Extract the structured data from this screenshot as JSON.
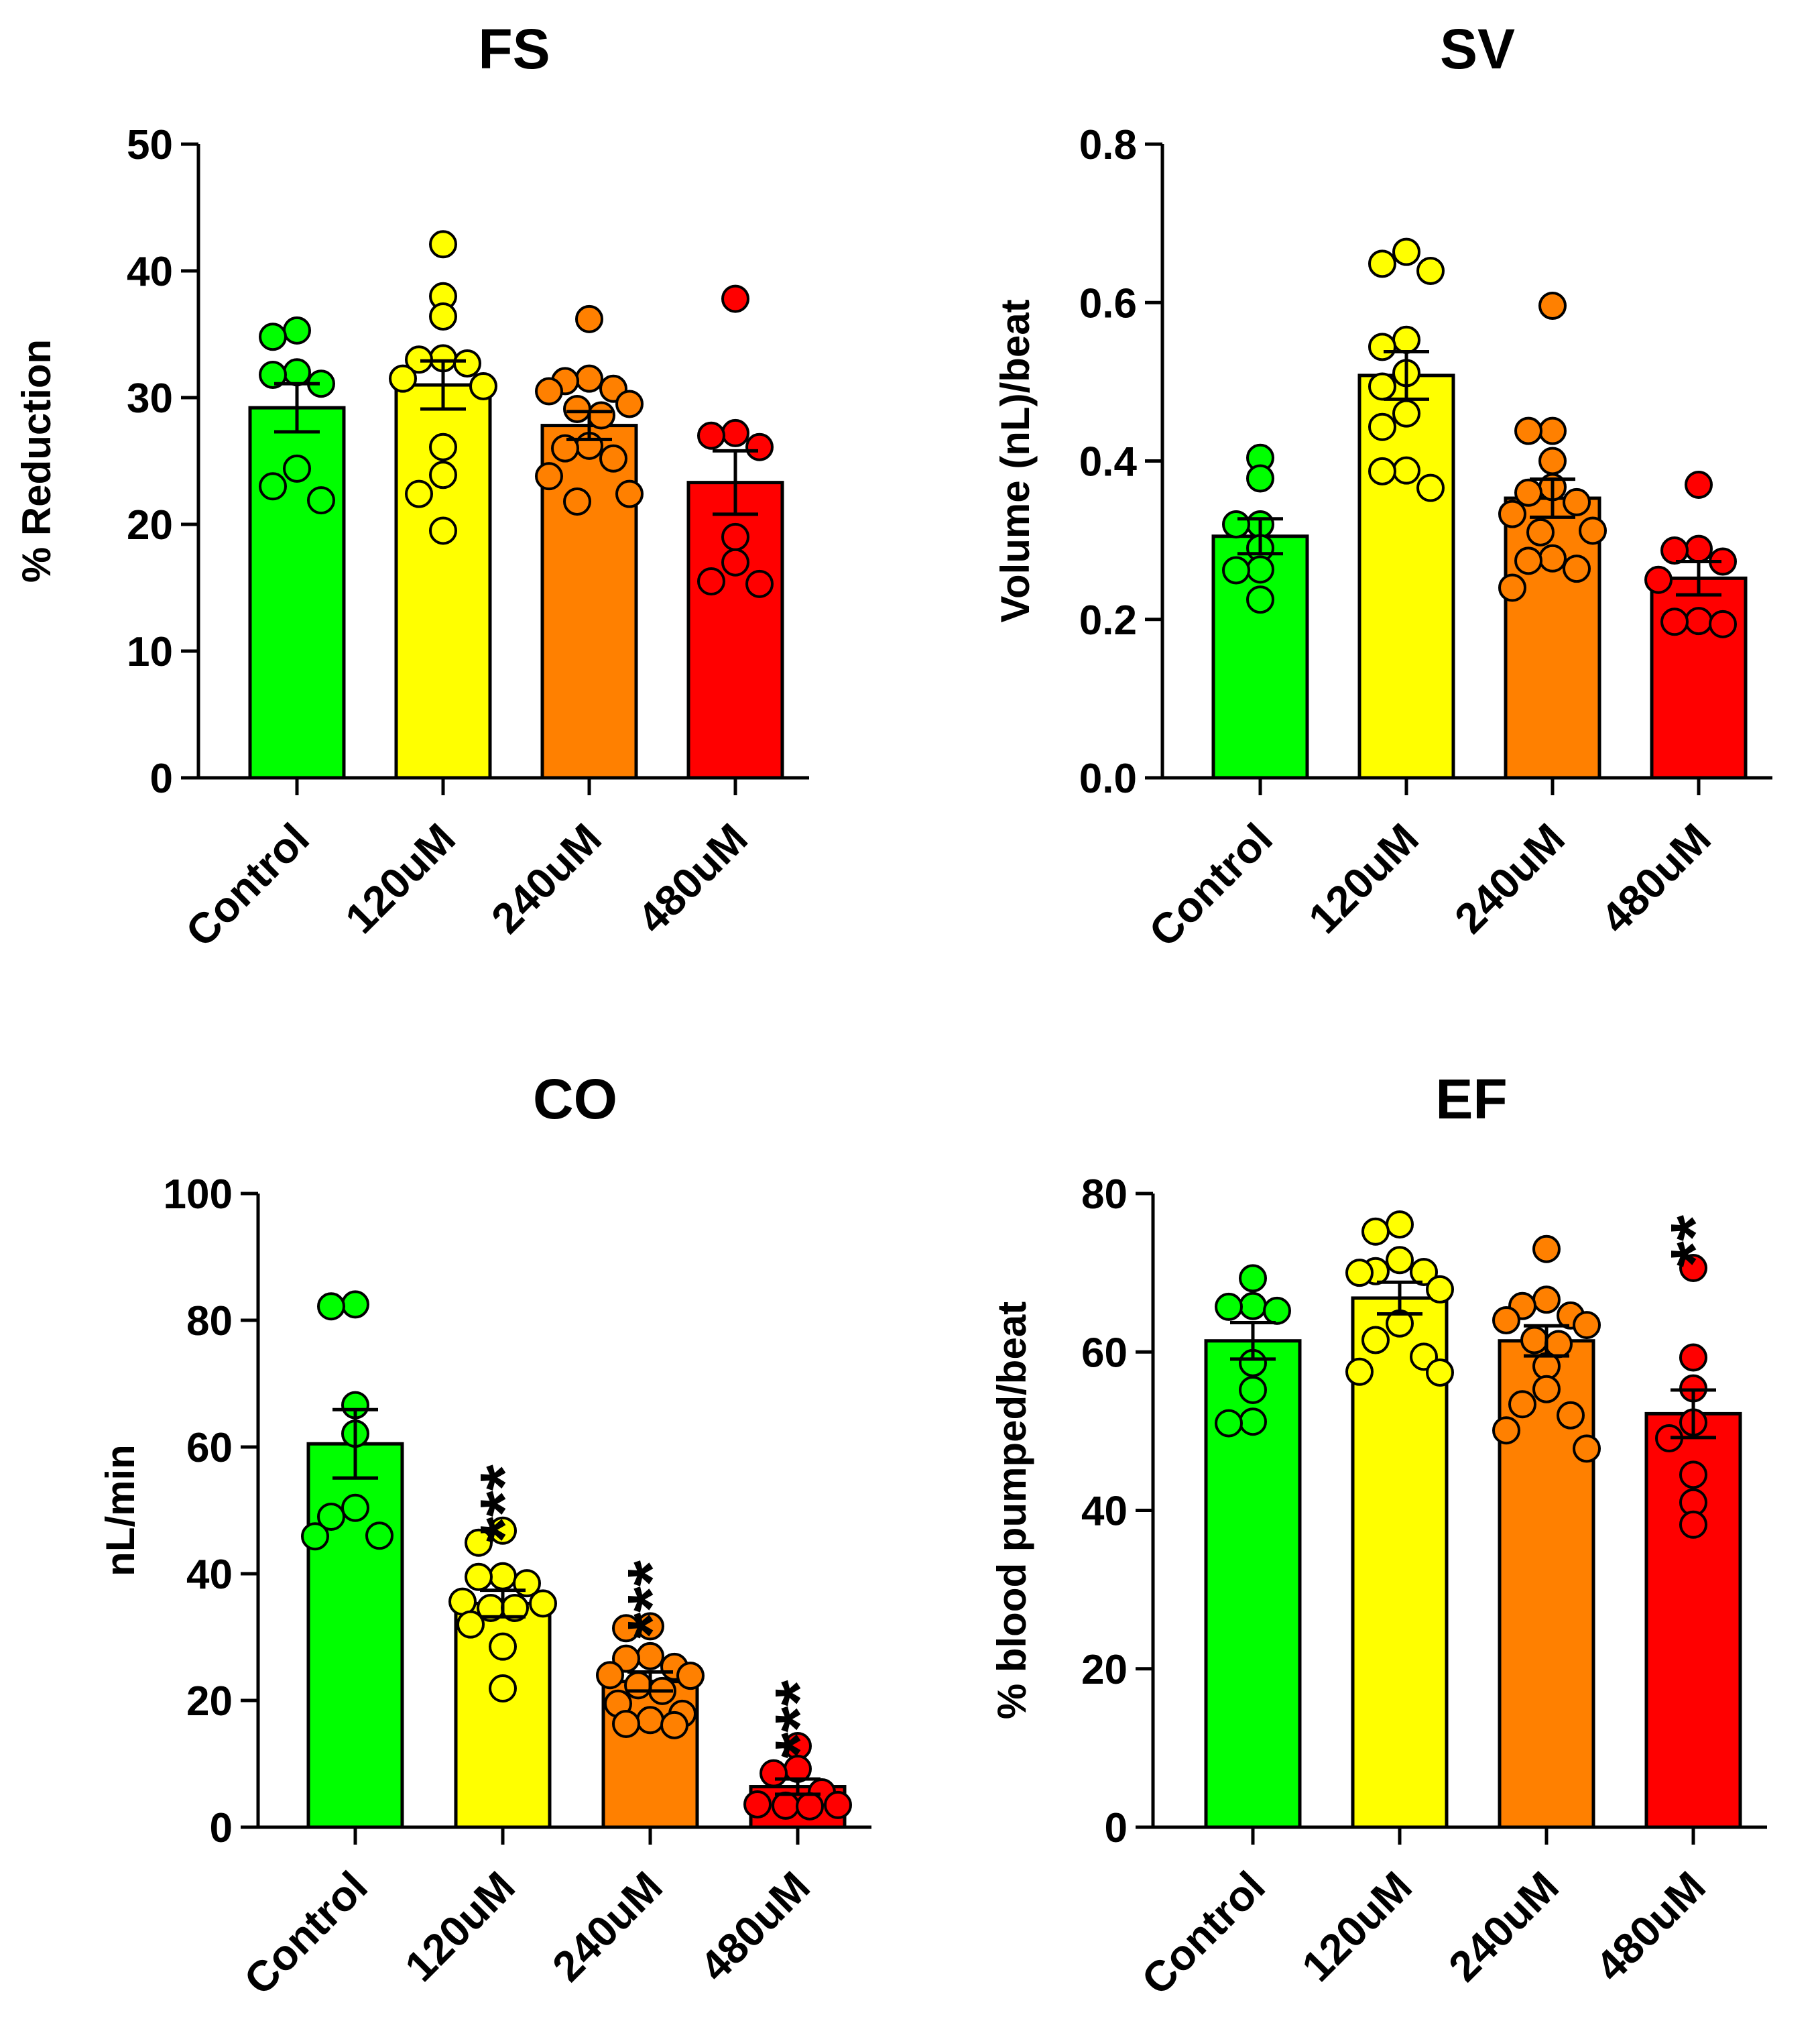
{
  "colors": {
    "Control": "#00ff00",
    "120uM": "#ffff00",
    "240uM": "#ff8000",
    "480uM": "#ff0000"
  },
  "chart_data": [
    {
      "type": "bar",
      "title": "FS",
      "ylabel": "% Reduction",
      "categories": [
        "Control",
        "120uM",
        "240uM",
        "480uM"
      ],
      "values": [
        29.2,
        31.0,
        27.8,
        23.3
      ],
      "sem": [
        1.9,
        1.9,
        1.1,
        2.5
      ],
      "ylim": [
        0,
        50
      ],
      "yticks": [
        0,
        10,
        20,
        30,
        40,
        50
      ],
      "ytick_labels": [
        "0",
        "10",
        "20",
        "30",
        "40",
        "50"
      ],
      "significance": [
        "",
        "",
        "",
        ""
      ],
      "points": [
        [
          34.8,
          35.3,
          32.0,
          31.1,
          31.8,
          21.9,
          24.4,
          23.0
        ],
        [
          42.1,
          36.4,
          38.0,
          32.7,
          33.0,
          33.1,
          31.5,
          30.9,
          26.1,
          23.9,
          22.4,
          19.5
        ],
        [
          36.2,
          31.3,
          30.5,
          30.7,
          31.5,
          29.1,
          28.6,
          29.5,
          26.2,
          26.0,
          25.2,
          23.8,
          21.8,
          22.4
        ],
        [
          37.8,
          27.0,
          27.2,
          26.1,
          19.0,
          17.0,
          15.3,
          15.5
        ]
      ]
    },
    {
      "type": "bar",
      "title": "SV",
      "ylabel": "Volume (nL)/beat",
      "categories": [
        "Control",
        "120uM",
        "240uM",
        "480uM"
      ],
      "values": [
        0.305,
        0.508,
        0.353,
        0.252
      ],
      "sem": [
        0.022,
        0.03,
        0.024,
        0.021
      ],
      "ylim": [
        0,
        0.8
      ],
      "yticks": [
        0,
        0.2,
        0.4,
        0.6,
        0.8
      ],
      "ytick_labels": [
        "0.0",
        "0.2",
        "0.4",
        "0.6",
        "0.8"
      ],
      "significance": [
        "",
        "",
        "",
        ""
      ],
      "points": [
        [
          0.378,
          0.404,
          0.32,
          0.32,
          0.29,
          0.263,
          0.262,
          0.225
        ],
        [
          0.664,
          0.64,
          0.649,
          0.553,
          0.544,
          0.511,
          0.494,
          0.46,
          0.443,
          0.388,
          0.387,
          0.366
        ],
        [
          0.596,
          0.438,
          0.438,
          0.4,
          0.367,
          0.36,
          0.348,
          0.333,
          0.312,
          0.31,
          0.277,
          0.274,
          0.264,
          0.24
        ],
        [
          0.37,
          0.289,
          0.287,
          0.273,
          0.25,
          0.198,
          0.194,
          0.197
        ]
      ]
    },
    {
      "type": "bar",
      "title": "CO",
      "ylabel": "nL/min",
      "categories": [
        "Control",
        "120uM",
        "240uM",
        "480uM"
      ],
      "values": [
        60.5,
        35.3,
        23.0,
        6.4
      ],
      "sem": [
        5.4,
        2.1,
        1.5,
        1.2
      ],
      "ylim": [
        0,
        100
      ],
      "yticks": [
        0,
        20,
        40,
        60,
        80,
        100
      ],
      "ytick_labels": [
        "0",
        "20",
        "40",
        "60",
        "80",
        "100"
      ],
      "significance": [
        "",
        "***",
        "***",
        "***"
      ],
      "points": [
        [
          82.2,
          82.5,
          66.6,
          62.1,
          50.4,
          49.0,
          45.9,
          46.0
        ],
        [
          46.8,
          44.9,
          39.6,
          39.5,
          35.6,
          35.3,
          34.6,
          34.6,
          32.0,
          28.5,
          21.9,
          38.5
        ],
        [
          31.7,
          31.4,
          27.0,
          26.6,
          25.3,
          24.0,
          23.9,
          22.4,
          21.5,
          19.5,
          17.9,
          16.3,
          16.1,
          16.9
        ],
        [
          12.8,
          9.2,
          8.5,
          5.5,
          3.6,
          3.5,
          3.4,
          3.3
        ]
      ]
    },
    {
      "type": "bar",
      "title": "EF",
      "ylabel": "% blood pumped/beat",
      "categories": [
        "Control",
        "120uM",
        "240uM",
        "480uM"
      ],
      "values": [
        61.4,
        66.8,
        61.4,
        52.2
      ],
      "sem": [
        2.3,
        2.0,
        1.9,
        3.0
      ],
      "ylim": [
        0,
        80
      ],
      "yticks": [
        0,
        20,
        40,
        60,
        80
      ],
      "ytick_labels": [
        "0",
        "20",
        "40",
        "60",
        "80"
      ],
      "significance": [
        "",
        "",
        "",
        "**"
      ],
      "points": [
        [
          69.3,
          65.8,
          65.2,
          65.7,
          58.6,
          55.2,
          51.2,
          51.0
        ],
        [
          76.1,
          75.2,
          71.6,
          70.1,
          70.0,
          70.2,
          67.9,
          63.6,
          61.5,
          59.4,
          57.5,
          57.4
        ],
        [
          73.0,
          66.6,
          65.8,
          64.6,
          64.0,
          63.4,
          61.5,
          61.0,
          58.2,
          55.3,
          53.4,
          52.0,
          50.1,
          47.8
        ],
        [
          70.6,
          59.3,
          55.4,
          51.1,
          49.1,
          44.5,
          41.0,
          38.2
        ]
      ]
    }
  ]
}
